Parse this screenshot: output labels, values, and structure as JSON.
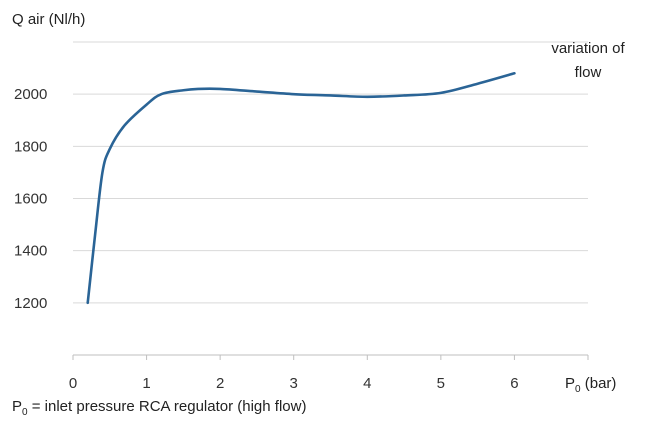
{
  "chart_data": {
    "type": "line",
    "ylabel": "Q air (Nl/h)",
    "xlabel": {
      "main": "P",
      "sub": "0",
      "rest": " (bar)"
    },
    "annotation": [
      "variation of",
      "flow"
    ],
    "xlim": [
      0,
      7
    ],
    "ylim": [
      1000,
      2200
    ],
    "x_ticks": [
      0,
      1,
      2,
      3,
      4,
      5,
      6
    ],
    "y_ticks": [
      1200,
      1400,
      1600,
      1800,
      2000
    ],
    "grid": "horizontal",
    "series": [
      {
        "color": "#2a6496",
        "x": [
          0.2,
          0.3,
          0.4,
          0.5,
          0.7,
          1.0,
          1.2,
          1.5,
          1.7,
          2.0,
          2.5,
          3.0,
          3.5,
          4.0,
          4.5,
          5.0,
          5.5,
          6.0
        ],
        "y": [
          1200,
          1460,
          1700,
          1790,
          1880,
          1960,
          2000,
          2015,
          2020,
          2020,
          2010,
          2000,
          1995,
          1990,
          1995,
          2005,
          2040,
          2080
        ]
      }
    ]
  },
  "footnote": {
    "main": "P",
    "sub": "0",
    "rest": " = inlet pressure RCA regulator (high flow)"
  }
}
